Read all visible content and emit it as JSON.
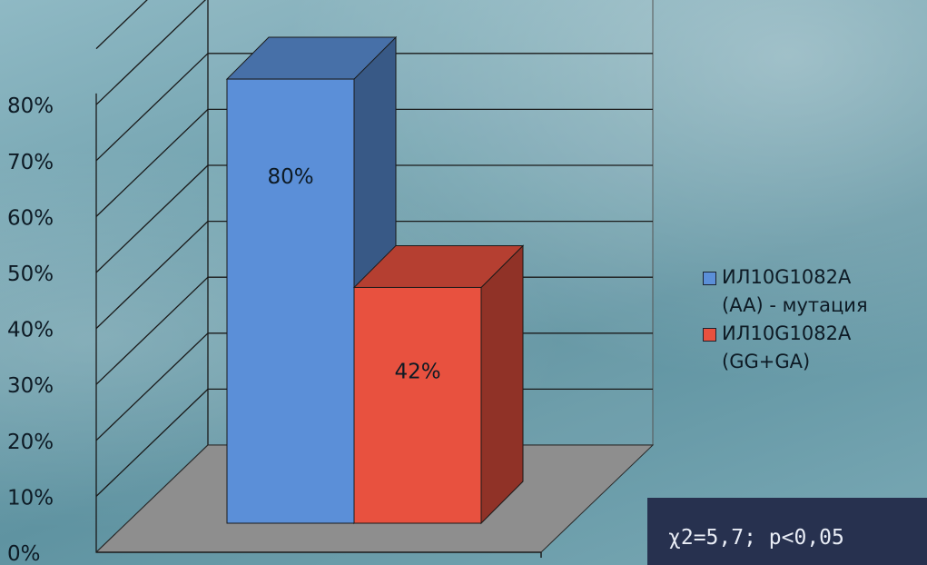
{
  "chart_data": {
    "type": "bar",
    "categories": [
      ""
    ],
    "series": [
      {
        "name": "ИЛ10G1082A\n(AA) - мутация",
        "values": [
          80
        ],
        "label": "80%",
        "color": "#5b8fd8"
      },
      {
        "name": "ИЛ10G1082A\n(GG+GA)",
        "values": [
          42
        ],
        "label": "42%",
        "color": "#e8513f"
      }
    ],
    "ylim": [
      0,
      80
    ],
    "yticks": [
      "0%",
      "10%",
      "20%",
      "30%",
      "40%",
      "50%",
      "60%",
      "70%",
      "80%"
    ],
    "grid": true,
    "legend_position": "right",
    "three_d": true
  },
  "annotation": {
    "text": "χ2=5,7; p<0,05"
  }
}
